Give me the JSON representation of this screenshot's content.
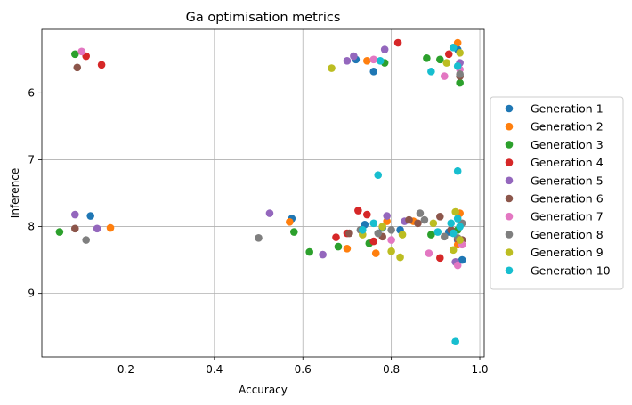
{
  "chart_data": {
    "type": "scatter",
    "title": "Ga optimisation metrics",
    "xlabel": "Accuracy",
    "ylabel": "Inference",
    "xlim": [
      0.01,
      1.01
    ],
    "ylim": [
      9.95,
      5.05
    ],
    "y_inverted": true,
    "xticks": [
      0.2,
      0.4,
      0.6,
      0.8,
      1.0
    ],
    "xtick_labels": [
      "0.2",
      "0.4",
      "0.6",
      "0.8",
      "1.0"
    ],
    "yticks": [
      6,
      7,
      8,
      9
    ],
    "ytick_labels": [
      "6",
      "7",
      "8",
      "9"
    ],
    "grid": true,
    "legend_position": "outside-right",
    "series": [
      {
        "name": "Generation 1",
        "color": "#1f77b4",
        "points": [
          [
            0.12,
            7.84
          ],
          [
            0.575,
            7.88
          ],
          [
            0.72,
            5.5
          ],
          [
            0.76,
            5.68
          ],
          [
            0.74,
            7.97
          ],
          [
            0.78,
            8.02
          ],
          [
            0.82,
            8.05
          ],
          [
            0.93,
            8.08
          ],
          [
            0.95,
            5.35
          ],
          [
            0.95,
            8.2
          ],
          [
            0.96,
            8.5
          ]
        ]
      },
      {
        "name": "Generation 2",
        "color": "#ff7f0e",
        "points": [
          [
            0.165,
            8.02
          ],
          [
            0.57,
            7.93
          ],
          [
            0.7,
            8.33
          ],
          [
            0.745,
            5.52
          ],
          [
            0.765,
            8.4
          ],
          [
            0.79,
            7.92
          ],
          [
            0.85,
            7.92
          ],
          [
            0.95,
            5.25
          ],
          [
            0.955,
            7.8
          ],
          [
            0.95,
            8.27
          ]
        ]
      },
      {
        "name": "Generation 3",
        "color": "#2ca02c",
        "points": [
          [
            0.085,
            5.42
          ],
          [
            0.05,
            8.08
          ],
          [
            0.58,
            8.08
          ],
          [
            0.615,
            8.38
          ],
          [
            0.68,
            8.3
          ],
          [
            0.75,
            8.25
          ],
          [
            0.785,
            5.55
          ],
          [
            0.88,
            5.48
          ],
          [
            0.89,
            8.12
          ],
          [
            0.91,
            5.5
          ],
          [
            0.955,
            5.85
          ],
          [
            0.95,
            8.05
          ]
        ]
      },
      {
        "name": "Generation 4",
        "color": "#d62728",
        "points": [
          [
            0.145,
            5.58
          ],
          [
            0.11,
            5.45
          ],
          [
            0.675,
            8.16
          ],
          [
            0.7,
            8.1
          ],
          [
            0.725,
            7.76
          ],
          [
            0.745,
            7.82
          ],
          [
            0.76,
            8.22
          ],
          [
            0.815,
            5.25
          ],
          [
            0.91,
            8.47
          ],
          [
            0.93,
            5.42
          ],
          [
            0.95,
            8.18
          ]
        ]
      },
      {
        "name": "Generation 5",
        "color": "#9467bd",
        "points": [
          [
            0.085,
            7.82
          ],
          [
            0.135,
            8.03
          ],
          [
            0.525,
            7.8
          ],
          [
            0.645,
            8.42
          ],
          [
            0.7,
            5.52
          ],
          [
            0.715,
            5.45
          ],
          [
            0.785,
            5.35
          ],
          [
            0.79,
            7.84
          ],
          [
            0.83,
            7.92
          ],
          [
            0.945,
            8.53
          ],
          [
            0.955,
            5.55
          ]
        ]
      },
      {
        "name": "Generation 6",
        "color": "#8c564b",
        "points": [
          [
            0.09,
            5.62
          ],
          [
            0.085,
            8.03
          ],
          [
            0.705,
            8.1
          ],
          [
            0.78,
            8.15
          ],
          [
            0.84,
            7.9
          ],
          [
            0.86,
            7.95
          ],
          [
            0.91,
            7.85
          ],
          [
            0.935,
            8.05
          ],
          [
            0.955,
            5.75
          ],
          [
            0.96,
            8.2
          ]
        ]
      },
      {
        "name": "Generation 7",
        "color": "#e377c2",
        "points": [
          [
            0.1,
            5.38
          ],
          [
            0.76,
            5.5
          ],
          [
            0.8,
            8.2
          ],
          [
            0.885,
            8.4
          ],
          [
            0.92,
            5.75
          ],
          [
            0.95,
            8.58
          ],
          [
            0.955,
            5.65
          ],
          [
            0.96,
            8.27
          ]
        ]
      },
      {
        "name": "Generation 8",
        "color": "#7f7f7f",
        "points": [
          [
            0.11,
            8.2
          ],
          [
            0.5,
            8.17
          ],
          [
            0.73,
            8.05
          ],
          [
            0.77,
            8.1
          ],
          [
            0.8,
            8.05
          ],
          [
            0.865,
            7.8
          ],
          [
            0.875,
            7.9
          ],
          [
            0.92,
            8.15
          ],
          [
            0.95,
            8.17
          ],
          [
            0.955,
            5.72
          ],
          [
            0.96,
            7.95
          ]
        ]
      },
      {
        "name": "Generation 9",
        "color": "#bcbd22",
        "points": [
          [
            0.665,
            5.63
          ],
          [
            0.735,
            8.12
          ],
          [
            0.78,
            8.0
          ],
          [
            0.8,
            8.37
          ],
          [
            0.82,
            8.46
          ],
          [
            0.825,
            8.12
          ],
          [
            0.895,
            7.95
          ],
          [
            0.925,
            5.55
          ],
          [
            0.94,
            8.35
          ],
          [
            0.945,
            7.78
          ],
          [
            0.955,
            5.4
          ],
          [
            0.955,
            8.2
          ]
        ]
      },
      {
        "name": "Generation 10",
        "color": "#17becf",
        "points": [
          [
            0.77,
            7.23
          ],
          [
            0.945,
            9.72
          ],
          [
            0.95,
            7.17
          ],
          [
            0.89,
            5.68
          ],
          [
            0.94,
            5.32
          ],
          [
            0.95,
            5.6
          ],
          [
            0.775,
            5.52
          ],
          [
            0.735,
            8.05
          ],
          [
            0.76,
            7.95
          ],
          [
            0.905,
            8.08
          ],
          [
            0.935,
            7.95
          ],
          [
            0.94,
            8.1
          ],
          [
            0.95,
            7.88
          ],
          [
            0.955,
            8.0
          ]
        ]
      }
    ]
  }
}
